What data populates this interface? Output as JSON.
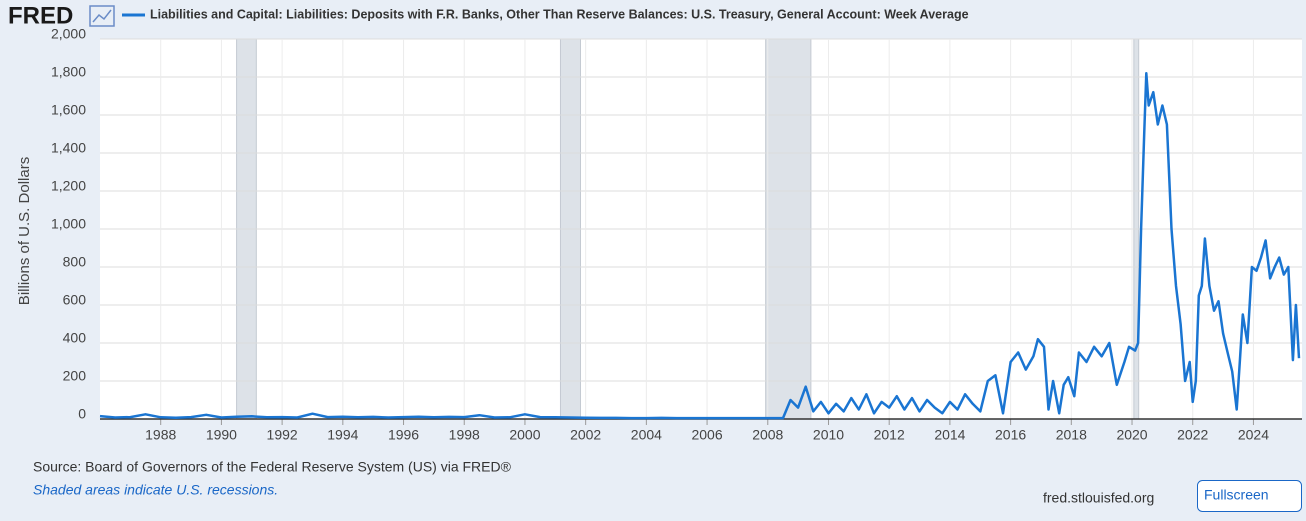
{
  "header": {
    "logo": "FRED"
  },
  "chart_data": {
    "type": "line",
    "y_label": "Billions of U.S. Dollars",
    "x": [
      1986,
      1986.5,
      1987,
      1987.5,
      1988,
      1988.5,
      1989,
      1989.5,
      1990,
      1990.5,
      1991,
      1991.5,
      1992,
      1992.5,
      1993,
      1993.5,
      1994,
      1994.5,
      1995,
      1995.5,
      1996,
      1996.5,
      1997,
      1997.5,
      1998,
      1998.5,
      1999,
      1999.5,
      2000,
      2000.5,
      2001,
      2001.5,
      2002,
      2002.5,
      2003,
      2003.5,
      2004,
      2004.5,
      2005,
      2005.5,
      2006,
      2006.5,
      2007,
      2007.5,
      2008,
      2008.5,
      2008.75,
      2009,
      2009.25,
      2009.5,
      2009.75,
      2010,
      2010.25,
      2010.5,
      2010.75,
      2011,
      2011.25,
      2011.5,
      2011.75,
      2012,
      2012.25,
      2012.5,
      2012.75,
      2013,
      2013.25,
      2013.5,
      2013.75,
      2014,
      2014.25,
      2014.5,
      2014.75,
      2015,
      2015.25,
      2015.5,
      2015.75,
      2016,
      2016.25,
      2016.5,
      2016.75,
      2016.9,
      2017.1,
      2017.25,
      2017.4,
      2017.6,
      2017.75,
      2017.9,
      2018.1,
      2018.25,
      2018.5,
      2018.75,
      2019,
      2019.25,
      2019.5,
      2019.75,
      2019.9,
      2020.1,
      2020.2,
      2020.3,
      2020.4,
      2020.47,
      2020.55,
      2020.7,
      2020.85,
      2021,
      2021.15,
      2021.3,
      2021.45,
      2021.6,
      2021.75,
      2021.9,
      2022,
      2022.1,
      2022.2,
      2022.3,
      2022.4,
      2022.55,
      2022.7,
      2022.85,
      2023,
      2023.15,
      2023.3,
      2023.45,
      2023.55,
      2023.65,
      2023.8,
      2023.95,
      2024.1,
      2024.25,
      2024.4,
      2024.55,
      2024.7,
      2024.85,
      2025,
      2025.15,
      2025.3,
      2025.4,
      2025.5
    ],
    "series": [
      {
        "name": "Liabilities and Capital: Liabilities: Deposits with F.R. Banks, Other Than Reserve Balances: U.S. Treasury, General Account: Week Average",
        "color": "#1a75d2",
        "values": [
          15,
          8,
          10,
          25,
          9,
          7,
          10,
          22,
          8,
          12,
          14,
          9,
          10,
          8,
          28,
          10,
          12,
          9,
          11,
          8,
          10,
          12,
          9,
          11,
          10,
          20,
          8,
          9,
          25,
          10,
          9,
          8,
          7,
          6,
          6,
          5,
          5,
          6,
          5,
          5,
          5,
          5,
          5,
          5,
          5,
          5,
          100,
          60,
          170,
          40,
          90,
          30,
          80,
          40,
          110,
          50,
          130,
          30,
          90,
          60,
          120,
          50,
          110,
          40,
          100,
          60,
          30,
          90,
          50,
          130,
          80,
          40,
          200,
          230,
          30,
          300,
          350,
          260,
          330,
          420,
          380,
          50,
          200,
          30,
          180,
          220,
          120,
          350,
          300,
          380,
          330,
          400,
          180,
          300,
          380,
          360,
          400,
          1000,
          1500,
          1820,
          1650,
          1720,
          1550,
          1650,
          1550,
          1000,
          700,
          500,
          200,
          300,
          90,
          200,
          650,
          700,
          950,
          700,
          570,
          620,
          450,
          350,
          250,
          50,
          300,
          550,
          400,
          800,
          780,
          850,
          940,
          740,
          800,
          850,
          760,
          800,
          310,
          600,
          320
        ]
      }
    ],
    "xlim": [
      1986,
      2025.6
    ],
    "ylim": [
      0,
      2000
    ],
    "xticks": [
      1988,
      1990,
      1992,
      1994,
      1996,
      1998,
      2000,
      2002,
      2004,
      2006,
      2008,
      2010,
      2012,
      2014,
      2016,
      2018,
      2020,
      2022,
      2024
    ],
    "yticks": [
      0,
      200,
      400,
      600,
      800,
      {
        "value": 1000,
        "label": "1,000"
      },
      {
        "value": 1200,
        "label": "1,200"
      },
      {
        "value": 1400,
        "label": "1,400"
      },
      {
        "value": 1600,
        "label": "1,600"
      },
      {
        "value": 1800,
        "label": "1,800"
      },
      {
        "value": 2000,
        "label": "2,000"
      }
    ],
    "recessions": [
      [
        1990.5,
        1991.15
      ],
      [
        2001.17,
        2001.83
      ],
      [
        2007.93,
        2009.42
      ],
      [
        2020.06,
        2020.22
      ]
    ],
    "grid": true
  },
  "footer": {
    "source": "Source: Board of Governors of the Federal Reserve System (US) via FRED®",
    "note": "Shaded areas indicate U.S. recessions.",
    "url": "fred.stlouisfed.org",
    "button": "Fullscreen"
  }
}
